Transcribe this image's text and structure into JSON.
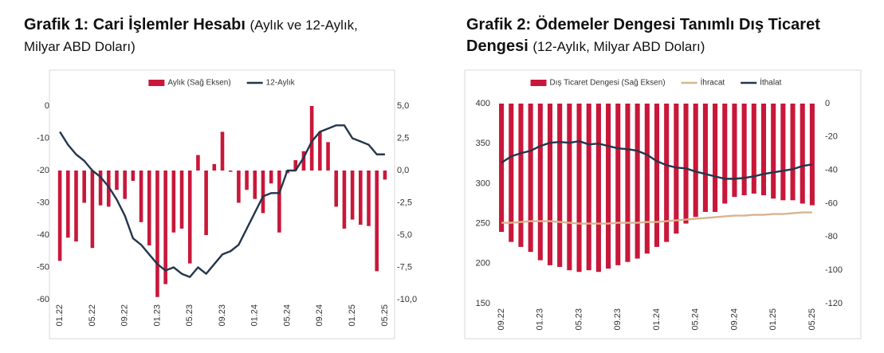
{
  "chart_data": [
    {
      "type": "combo",
      "title": "Grafik 1: Cari İşlemler Hesabı",
      "subtitle": "(Aylık ve 12-Aylık, Milyar ABD Doları)",
      "categories": [
        "01.22",
        null,
        null,
        null,
        "05.22",
        null,
        null,
        null,
        "09.22",
        null,
        null,
        null,
        "01.23",
        null,
        null,
        null,
        "05.23",
        null,
        null,
        null,
        "09.23",
        null,
        null,
        null,
        "01.24",
        null,
        null,
        null,
        "05.24",
        null,
        null,
        null,
        "09.24",
        null,
        null,
        null,
        "01.25",
        null,
        null,
        null,
        "05.25"
      ],
      "series": [
        {
          "name": "Aylık (Sağ Eksen)",
          "type": "bar",
          "axis": "y2",
          "color": "#c8173a",
          "values": [
            -7.0,
            -5.2,
            -5.5,
            -2.5,
            -6.0,
            -2.7,
            -2.8,
            -1.5,
            -2.2,
            -0.8,
            -4.0,
            -5.8,
            -9.8,
            -8.8,
            -4.8,
            -4.5,
            -7.2,
            1.2,
            -5.0,
            0.5,
            3.0,
            -0.1,
            -2.5,
            -1.5,
            -2.2,
            -3.3,
            -1.0,
            -4.8,
            -0.2,
            0.8,
            1.5,
            5.0,
            3.0,
            2.2,
            -2.8,
            -4.5,
            -3.8,
            -4.2,
            -4.3,
            -7.8,
            -0.7
          ]
        },
        {
          "name": "12-Aylık",
          "type": "line",
          "color": "#24364b",
          "values": [
            -8,
            -12,
            -15,
            -17,
            -20,
            -22,
            -25,
            -29,
            -34,
            -41,
            -43,
            -46,
            -49,
            -51,
            -50,
            -52,
            -53,
            -50,
            -52,
            -49,
            -46,
            -45,
            -43,
            -38,
            -33,
            -28,
            -27,
            -27,
            -20,
            -20,
            -16,
            -11,
            -8,
            -7,
            -6,
            -6,
            -10,
            -11,
            -12,
            -15,
            -15
          ]
        }
      ],
      "ylim": [
        -60,
        0
      ],
      "yticks": [
        -60,
        -50,
        -40,
        -30,
        -20,
        -10,
        0
      ],
      "y2lim": [
        -10,
        5
      ],
      "y2ticks": [
        {
          "value": -10,
          "label": "-10,0"
        },
        {
          "value": -7.5,
          "label": "-7,5"
        },
        {
          "value": -5,
          "label": "-5,0"
        },
        {
          "value": -2.5,
          "label": "-2,5"
        },
        {
          "value": 0,
          "label": "0,0"
        },
        {
          "value": 2.5,
          "label": "2,5"
        },
        {
          "value": 5,
          "label": "5,0"
        }
      ],
      "grid": false,
      "legend": "top"
    },
    {
      "type": "combo",
      "title": "Grafik 2: Ödemeler Dengesi Tanımlı Dış Ticaret Dengesi",
      "subtitle": "(12-Aylık, Milyar ABD Doları)",
      "categories": [
        "09.22",
        null,
        null,
        null,
        "01.23",
        null,
        null,
        null,
        "05.23",
        null,
        null,
        null,
        "09.23",
        null,
        null,
        null,
        "01.24",
        null,
        null,
        null,
        "05.24",
        null,
        null,
        null,
        "09.24",
        null,
        null,
        null,
        "01.25",
        null,
        null,
        null,
        "05.25"
      ],
      "series": [
        {
          "name": "Dış Ticaret Dengesi (Sağ Eksen)",
          "type": "bar",
          "axis": "y2",
          "color": "#c8173a",
          "values": [
            -77,
            -83,
            -86,
            -89,
            -94,
            -97,
            -98,
            -100,
            -101,
            -100,
            -101,
            -99,
            -97,
            -95,
            -93,
            -90,
            -86,
            -83,
            -78,
            -72,
            -68,
            -65,
            -65,
            -60,
            -56,
            -55,
            -54,
            -55,
            -57,
            -58,
            -58,
            -60,
            -61
          ]
        },
        {
          "name": "İhracat",
          "type": "line",
          "color": "#d9b48f",
          "values": [
            251,
            251,
            252,
            253,
            253,
            253,
            252,
            251,
            250,
            250,
            250,
            250,
            251,
            251,
            251,
            252,
            252,
            253,
            254,
            255,
            256,
            257,
            258,
            259,
            260,
            260,
            261,
            261,
            262,
            262,
            263,
            264,
            264
          ]
        },
        {
          "name": "İthalat",
          "type": "line",
          "color": "#24364b",
          "values": [
            326,
            334,
            338,
            341,
            347,
            351,
            352,
            351,
            353,
            349,
            350,
            347,
            344,
            343,
            341,
            336,
            328,
            323,
            320,
            319,
            315,
            312,
            309,
            306,
            306,
            307,
            309,
            312,
            314,
            316,
            318,
            322,
            324
          ]
        }
      ],
      "ylim": [
        150,
        400
      ],
      "yticks": [
        150,
        200,
        250,
        300,
        350,
        400
      ],
      "y2lim": [
        -120,
        0
      ],
      "y2ticks": [
        -120,
        -100,
        -80,
        -60,
        -40,
        -20,
        0
      ],
      "grid": false,
      "legend": "top"
    }
  ]
}
